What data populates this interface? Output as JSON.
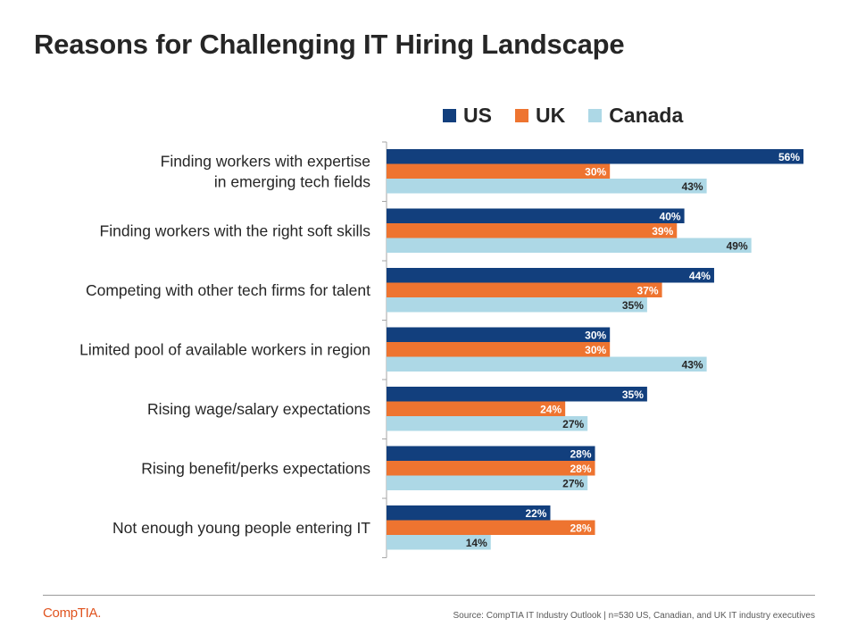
{
  "page": {
    "title": "Reasons for Challenging IT Hiring Landscape",
    "source": "Source: CompTIA IT Industry Outlook | n=530 US, Canadian, and UK IT industry executives",
    "logo": "CompTIA."
  },
  "chart_data": {
    "type": "bar",
    "orientation": "horizontal",
    "categories": [
      [
        "Finding workers with expertise",
        "in emerging tech fields"
      ],
      [
        "Finding workers with the right soft skills"
      ],
      [
        "Competing with other tech firms for talent"
      ],
      [
        "Limited pool of available workers in region"
      ],
      [
        "Rising wage/salary expectations"
      ],
      [
        "Rising benefit/perks expectations"
      ],
      [
        "Not enough young people entering IT"
      ]
    ],
    "series": [
      {
        "name": "US",
        "color": "#123f7d",
        "values": [
          56,
          40,
          44,
          30,
          35,
          28,
          22
        ]
      },
      {
        "name": "UK",
        "color": "#ee7430",
        "values": [
          30,
          39,
          37,
          30,
          24,
          28,
          28
        ]
      },
      {
        "name": "Canada",
        "color": "#add8e6",
        "values": [
          43,
          49,
          35,
          43,
          27,
          27,
          14
        ]
      }
    ],
    "value_suffix": "%",
    "xlim": [
      0,
      56
    ],
    "legend_position": "top",
    "grid": false
  }
}
